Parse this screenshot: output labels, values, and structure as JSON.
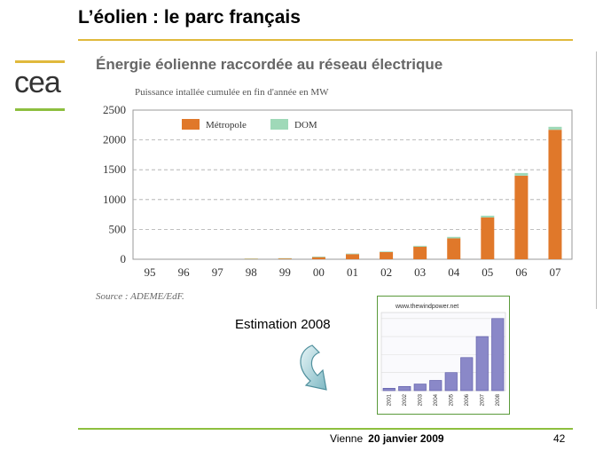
{
  "slide": {
    "title": "L’éolien : le parc français",
    "logo_text": "cea",
    "estimation_label": "Estimation 2008",
    "footer_location": "Vienne",
    "footer_date": "20 janvier 2009",
    "page_number": "42"
  },
  "colors": {
    "metropole": "#e0782a",
    "dom": "#9fd9b8",
    "gold_rule": "#e0b93c",
    "green_rule": "#8dbf3f",
    "inset_bar": "#8a88c8"
  },
  "chart_data": [
    {
      "type": "bar",
      "stacked": true,
      "title": "Énergie éolienne raccordée au réseau électrique",
      "subtitle": "Puissance intallée cumulée en fin d'année en MW",
      "source": "Source  : ADEME/EdF.",
      "categories": [
        "95",
        "96",
        "97",
        "98",
        "99",
        "00",
        "01",
        "02",
        "03",
        "04",
        "05",
        "06",
        "07"
      ],
      "series": [
        {
          "name": "Métropole",
          "values": [
            0,
            0,
            0,
            10,
            15,
            35,
            85,
            120,
            210,
            350,
            700,
            1400,
            2170
          ]
        },
        {
          "name": "DOM",
          "values": [
            0,
            0,
            0,
            2,
            3,
            10,
            10,
            10,
            15,
            25,
            30,
            45,
            50
          ]
        }
      ],
      "ylim": [
        0,
        2500
      ],
      "yticks": [
        0,
        500,
        1000,
        1500,
        2000,
        2500
      ],
      "grid": true,
      "legend": "top-left"
    },
    {
      "type": "bar",
      "title": "www.thewindpower.net",
      "categories": [
        "2001",
        "2002",
        "2003",
        "2004",
        "2005",
        "2006",
        "2007",
        "2008"
      ],
      "values": [
        0.04,
        0.07,
        0.11,
        0.17,
        0.3,
        0.55,
        0.9,
        1.2
      ],
      "ylim": [
        0,
        1.3
      ],
      "grid": true
    }
  ]
}
